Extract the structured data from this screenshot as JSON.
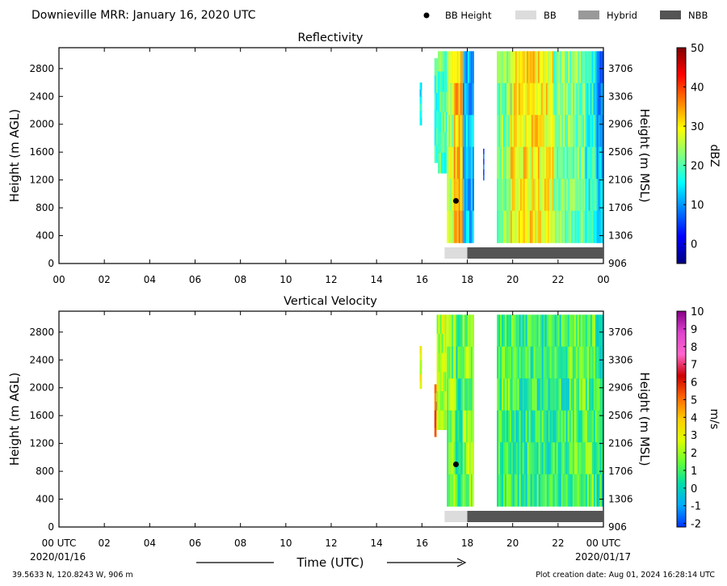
{
  "header": {
    "title": "Downieville MRR:  January 16, 2020 UTC",
    "legend": [
      {
        "label": "BB Height",
        "kind": "dot",
        "color": "#000000"
      },
      {
        "label": "BB",
        "kind": "bar",
        "color": "#dcdcdc"
      },
      {
        "label": "Hybrid",
        "kind": "bar",
        "color": "#999999"
      },
      {
        "label": "NBB",
        "kind": "bar",
        "color": "#555555"
      }
    ]
  },
  "footer": {
    "location": "39.5633 N, 120.8243 W, 906 m",
    "creation": "Plot creation date: Aug 01, 2024 16:28:14 UTC",
    "xlabel": "Time (UTC)",
    "date_start": "2020/01/16",
    "date_end": "2020/01/17"
  },
  "chart_data": [
    {
      "type": "heatmap",
      "title": "Reflectivity",
      "ylabel": "Height (m AGL)",
      "y2label": "Height (m MSL)",
      "colorbar_label": "dBZ",
      "xlim": [
        0,
        24
      ],
      "ylim": [
        0,
        3100
      ],
      "y2lim": [
        906,
        4006
      ],
      "xticks": [
        "00",
        "02",
        "04",
        "06",
        "08",
        "10",
        "12",
        "14",
        "16",
        "18",
        "20",
        "22",
        "00"
      ],
      "yticks": [
        0,
        400,
        800,
        1200,
        1600,
        2000,
        2400,
        2800
      ],
      "y2ticks": [
        906,
        1306,
        1706,
        2106,
        2506,
        2906,
        3306,
        3706
      ],
      "colorbar_range": [
        -5,
        50
      ],
      "colorbar_ticks": [
        0,
        10,
        20,
        30,
        40,
        50
      ],
      "colormap": [
        "#00007f",
        "#0000ff",
        "#007fff",
        "#00ffff",
        "#7fff7f",
        "#ffff00",
        "#ff7f00",
        "#ff0000",
        "#7f0000"
      ],
      "bb_height": {
        "time": 17.5,
        "height": 900
      },
      "bb_type": [
        {
          "type": "BB",
          "start": 17.0,
          "end": 18.0
        },
        {
          "type": "NBB",
          "start": 18.0,
          "end": 24.0
        }
      ],
      "echo_columns": [
        {
          "start": 15.9,
          "end": 16.0,
          "bottom": 1990,
          "top": 2600,
          "value": 14
        },
        {
          "start": 16.55,
          "end": 16.7,
          "bottom": 1450,
          "top": 2950,
          "value": 18
        },
        {
          "start": 16.7,
          "end": 17.1,
          "bottom": 1300,
          "top": 3050,
          "value": 20
        },
        {
          "start": 17.1,
          "end": 17.4,
          "bottom": 300,
          "top": 3050,
          "value": 26
        },
        {
          "start": 17.4,
          "end": 17.8,
          "bottom": 300,
          "top": 3050,
          "value": 33
        },
        {
          "start": 17.8,
          "end": 18.3,
          "bottom": 300,
          "top": 3050,
          "value": 12
        },
        {
          "start": 18.7,
          "end": 18.75,
          "bottom": 1200,
          "top": 1650,
          "value": 6
        },
        {
          "start": 19.3,
          "end": 19.9,
          "bottom": 300,
          "top": 3050,
          "value": 22
        },
        {
          "start": 19.9,
          "end": 21.8,
          "bottom": 300,
          "top": 3050,
          "value": 30
        },
        {
          "start": 21.8,
          "end": 23.2,
          "bottom": 300,
          "top": 3050,
          "value": 22
        },
        {
          "start": 23.2,
          "end": 23.7,
          "bottom": 300,
          "top": 3050,
          "value": 17
        },
        {
          "start": 23.7,
          "end": 24.0,
          "bottom": 300,
          "top": 3050,
          "value": 10
        }
      ]
    },
    {
      "type": "heatmap",
      "title": "Vertical Velocity",
      "ylabel": "Height (m AGL)",
      "y2label": "Height (m MSL)",
      "colorbar_label": "m/s",
      "xlim": [
        0,
        24
      ],
      "ylim": [
        0,
        3100
      ],
      "y2lim": [
        906,
        4006
      ],
      "xticks": [
        "00 UTC",
        "02",
        "04",
        "06",
        "08",
        "10",
        "12",
        "14",
        "16",
        "18",
        "20",
        "22",
        "00 UTC"
      ],
      "yticks": [
        0,
        400,
        800,
        1200,
        1600,
        2000,
        2400,
        2800
      ],
      "y2ticks": [
        906,
        1306,
        1706,
        2106,
        2506,
        2906,
        3306,
        3706
      ],
      "colorbar_range": [
        -2.2,
        10
      ],
      "colorbar_ticks": [
        -2,
        -1,
        0,
        1,
        2,
        3,
        4,
        5,
        6,
        7,
        8,
        9,
        10
      ],
      "colormap": [
        "#0033ff",
        "#00aaff",
        "#00ddaa",
        "#66ff33",
        "#ddff00",
        "#ffcc00",
        "#ff6600",
        "#cc0000",
        "#ff66cc",
        "#dd44cc",
        "#880088"
      ],
      "bb_height": {
        "time": 17.5,
        "height": 900
      },
      "bb_type": [
        {
          "type": "BB",
          "start": 17.0,
          "end": 18.0
        },
        {
          "type": "NBB",
          "start": 18.0,
          "end": 24.0
        }
      ],
      "echo_columns": [
        {
          "start": 15.9,
          "end": 16.0,
          "bottom": 1990,
          "top": 2600,
          "value": 2.5
        },
        {
          "start": 16.55,
          "end": 16.65,
          "bottom": 1300,
          "top": 2050,
          "value": 5
        },
        {
          "start": 16.65,
          "end": 17.1,
          "bottom": 1400,
          "top": 3050,
          "value": 2.2
        },
        {
          "start": 17.1,
          "end": 17.5,
          "bottom": 300,
          "top": 3050,
          "value": 1.6
        },
        {
          "start": 17.5,
          "end": 17.8,
          "bottom": 300,
          "top": 3050,
          "value": 0.8
        },
        {
          "start": 17.8,
          "end": 18.3,
          "bottom": 300,
          "top": 3050,
          "value": 1.8
        },
        {
          "start": 19.3,
          "end": 20.0,
          "bottom": 300,
          "top": 3050,
          "value": 1.2
        },
        {
          "start": 20.0,
          "end": 22.5,
          "bottom": 300,
          "top": 3050,
          "value": 0.7
        },
        {
          "start": 22.5,
          "end": 23.7,
          "bottom": 300,
          "top": 3050,
          "value": 1.2
        },
        {
          "start": 23.7,
          "end": 24.0,
          "bottom": 300,
          "top": 3050,
          "value": 0.6
        }
      ]
    }
  ]
}
